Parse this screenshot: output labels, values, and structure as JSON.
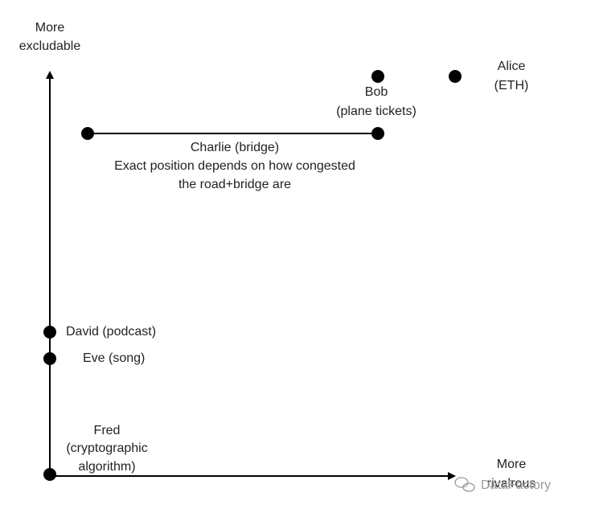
{
  "axes": {
    "y_label": [
      "More",
      "excludable"
    ],
    "x_label": [
      "More",
      "rivalrous"
    ]
  },
  "nodes": [
    {
      "label": [
        "Alice",
        "(ETH)"
      ]
    },
    {
      "label": [
        "Bob",
        "(plane tickets)"
      ]
    },
    {
      "label": [
        "Charlie (bridge)",
        "Exact position depends on how congested",
        "the road+bridge are"
      ]
    },
    {
      "label": [
        "David (podcast)"
      ]
    },
    {
      "label": [
        "Eve (song)"
      ]
    },
    {
      "label": [
        "Fred",
        "(cryptographic",
        "algorithm)"
      ]
    }
  ],
  "watermark": "DataFactory"
}
